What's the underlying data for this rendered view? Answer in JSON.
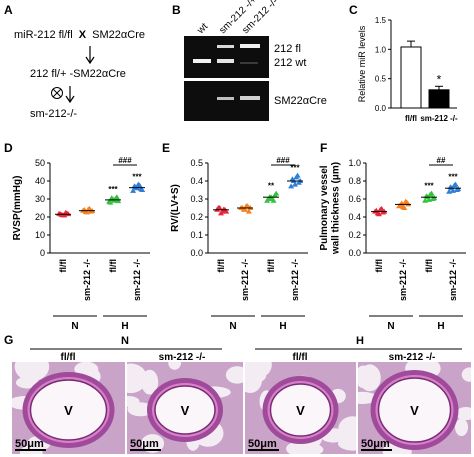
{
  "panelA": {
    "label": "A",
    "line1": "miR-212 fl/fl",
    "cross": "X",
    "line1b": "SM22αCre",
    "line2": "212 fl/+ -SM22αCre",
    "line3": "sm-212-/-"
  },
  "panelB": {
    "label": "B",
    "lanes": [
      "wt",
      "sm-212 -/+",
      "sm-212 -/-"
    ],
    "band_212fl": "212 fl",
    "band_212wt": "212 wt",
    "band_sm22": "SM22αCre"
  },
  "panelG": {
    "label": "G",
    "group_N": "N",
    "group_H": "H",
    "cols": [
      "fl/fl",
      "sm-212 -/-",
      "fl/fl",
      "sm-212 -/-"
    ],
    "vessel_label": "V",
    "scale": "50μm"
  },
  "chart_data": [
    {
      "panel": "C",
      "type": "bar",
      "ylabel": "Relative miR levels",
      "ylim": [
        0,
        1.5
      ],
      "yticks": [
        "0.0",
        "0.5",
        "1.0",
        "1.5"
      ],
      "categories": [
        "fl/fl",
        "sm-212 -/-"
      ],
      "values": [
        1.04,
        0.31
      ],
      "errors": [
        0.1,
        0.06
      ],
      "colors": [
        "#ffffff",
        "#000000"
      ],
      "annotation": "*"
    },
    {
      "panel": "D",
      "type": "scatter",
      "ylabel": "RVSP(mmHg)",
      "ylim": [
        0,
        50
      ],
      "yticks": [
        "0",
        "10",
        "20",
        "30",
        "40",
        "50"
      ],
      "categories": [
        "fl/fl",
        "sm-212 -/-",
        "fl/fl",
        "sm-212 -/-"
      ],
      "groups": [
        "N",
        "N",
        "H",
        "H"
      ],
      "group_labels": [
        "N",
        "H"
      ],
      "colors": [
        "#e8283a",
        "#f5821f",
        "#35c23f",
        "#2e7fd8"
      ],
      "values": [
        [
          21.8,
          21.2,
          20.9,
          22.0,
          21.5,
          21.0,
          22.3,
          21.6
        ],
        [
          23.5,
          22.8,
          24.2,
          23.0,
          23.9,
          22.6,
          24.5,
          23.3
        ],
        [
          28.5,
          30.5,
          29.0,
          31.0,
          28.0,
          29.8,
          30.2,
          28.8
        ],
        [
          34.5,
          36.5,
          38.0,
          35.5,
          37.0,
          36.0,
          37.5,
          35.0
        ]
      ],
      "means": [
        21.5,
        23.5,
        29.5,
        36.3
      ],
      "stars": [
        "",
        "",
        "***",
        "***"
      ],
      "bracket": "###"
    },
    {
      "panel": "E",
      "type": "scatter",
      "ylabel": "RV/(LV+S)",
      "ylim": [
        0,
        0.5
      ],
      "yticks": [
        "0.0",
        "0.1",
        "0.2",
        "0.3",
        "0.4",
        "0.5"
      ],
      "categories": [
        "fl/fl",
        "sm-212 -/-",
        "fl/fl",
        "sm-212 -/-"
      ],
      "groups": [
        "N",
        "N",
        "H",
        "H"
      ],
      "group_labels": [
        "N",
        "H"
      ],
      "colors": [
        "#e8283a",
        "#f5821f",
        "#35c23f",
        "#2e7fd8"
      ],
      "values": [
        [
          0.24,
          0.25,
          0.23,
          0.24,
          0.25,
          0.22,
          0.24,
          0.23
        ],
        [
          0.25,
          0.24,
          0.26,
          0.23,
          0.25,
          0.24,
          0.26,
          0.25
        ],
        [
          0.29,
          0.31,
          0.3,
          0.32,
          0.3,
          0.31,
          0.29,
          0.33
        ],
        [
          0.37,
          0.4,
          0.42,
          0.39,
          0.41,
          0.38,
          0.43,
          0.4
        ]
      ],
      "means": [
        0.24,
        0.25,
        0.31,
        0.4
      ],
      "stars": [
        "",
        "",
        "**",
        "***"
      ],
      "bracket": "###"
    },
    {
      "panel": "F",
      "type": "scatter",
      "ylabel": "Pulmonary vessel wall thickness (μm)",
      "ylim": [
        0,
        1.0
      ],
      "yticks": [
        "0.0",
        "0.2",
        "0.4",
        "0.6",
        "0.8",
        "1.0"
      ],
      "categories": [
        "fl/fl",
        "sm-212 -/-",
        "fl/fl",
        "sm-212 -/-"
      ],
      "groups": [
        "N",
        "N",
        "H",
        "H"
      ],
      "group_labels": [
        "N",
        "H"
      ],
      "colors": [
        "#e8283a",
        "#f5821f",
        "#35c23f",
        "#2e7fd8"
      ],
      "values": [
        [
          0.46,
          0.44,
          0.48,
          0.45,
          0.47,
          0.43,
          0.49,
          0.46
        ],
        [
          0.52,
          0.55,
          0.5,
          0.56,
          0.53,
          0.51,
          0.57,
          0.54
        ],
        [
          0.58,
          0.62,
          0.65,
          0.6,
          0.63,
          0.59,
          0.66,
          0.61
        ],
        [
          0.68,
          0.72,
          0.75,
          0.7,
          0.73,
          0.69,
          0.76,
          0.71
        ]
      ],
      "means": [
        0.46,
        0.54,
        0.62,
        0.72
      ],
      "stars": [
        "",
        "",
        "***",
        "***"
      ],
      "bracket": "##"
    }
  ]
}
